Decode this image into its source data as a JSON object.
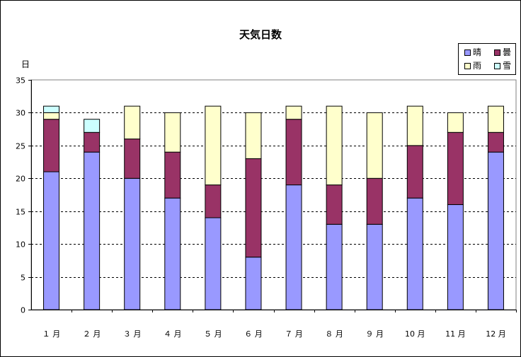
{
  "chart_data": {
    "type": "bar",
    "stacked": true,
    "title": "天気日数",
    "ylabel": "日",
    "xlabel": "",
    "ylim": [
      0,
      35
    ],
    "y_ticks": [
      "0",
      "5",
      "10",
      "15",
      "20",
      "25",
      "30",
      "35"
    ],
    "grid": true,
    "legend_position": "top-right",
    "categories": [
      "１ 月",
      "２ 月",
      "３ 月",
      "４ 月",
      "５ 月",
      "６ 月",
      "７ 月",
      "８ 月",
      "９ 月",
      "10 月",
      "11 月",
      "12 月"
    ],
    "series": [
      {
        "name": "晴",
        "color": "#9999ff",
        "values": [
          21,
          24,
          20,
          17,
          14,
          8,
          19,
          13,
          13,
          17,
          16,
          24
        ]
      },
      {
        "name": "曇",
        "color": "#993366",
        "values": [
          8,
          3,
          6,
          7,
          5,
          15,
          10,
          6,
          7,
          8,
          11,
          3
        ]
      },
      {
        "name": "雨",
        "color": "#ffffcc",
        "values": [
          1,
          0,
          5,
          6,
          12,
          7,
          2,
          12,
          10,
          6,
          3,
          4
        ]
      },
      {
        "name": "雪",
        "color": "#ccffff",
        "values": [
          1,
          2,
          0,
          0,
          0,
          0,
          0,
          0,
          0,
          0,
          0,
          0
        ]
      }
    ]
  }
}
